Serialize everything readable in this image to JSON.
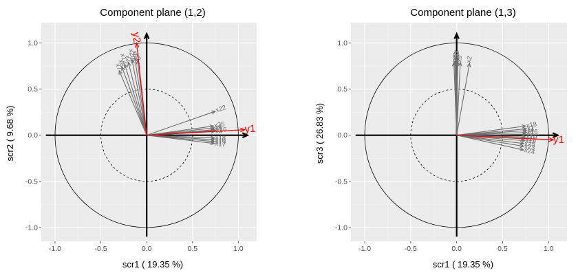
{
  "chart_data": [
    {
      "type": "scatter",
      "subtype": "pca-correlation-circle",
      "title": "Component plane (1,2)",
      "xlabel": "scr1 ( 19.35 %)",
      "ylabel": "scr2 ( 9.68 %)",
      "xlim": [
        -1.15,
        1.2
      ],
      "ylim": [
        -1.15,
        1.22
      ],
      "xticks": [
        "-1.0",
        "-0.5",
        "0.0",
        "0.5",
        "1.0"
      ],
      "yticks": [
        "-1.0",
        "-0.5",
        "0.0",
        "0.5",
        "1.0"
      ],
      "xtick_values": [
        -1,
        -0.5,
        0,
        0.5,
        1
      ],
      "ytick_values": [
        -1,
        -0.5,
        0,
        0.5,
        1
      ],
      "grid": true,
      "background": "#ebebeb",
      "circles": [
        1.0,
        0.5
      ],
      "axis_arrows": {
        "x": [
          -1.1,
          1.1
        ],
        "y": [
          -1.1,
          1.1
        ]
      },
      "predictor_color": "#6e6e6e",
      "response_color": "#ff0000",
      "predictors": [
        {
          "name": "x7",
          "x": -0.3,
          "y": 0.7
        },
        {
          "name": "x8",
          "x": -0.27,
          "y": 0.74
        },
        {
          "name": "x12",
          "x": -0.24,
          "y": 0.77
        },
        {
          "name": "x2",
          "x": -0.2,
          "y": 0.79
        },
        {
          "name": "x20",
          "x": -0.16,
          "y": 0.82
        },
        {
          "name": "x6",
          "x": -0.13,
          "y": 0.84
        },
        {
          "name": "x9",
          "x": -0.1,
          "y": 0.81
        },
        {
          "name": "x22",
          "x": 0.75,
          "y": 0.26
        },
        {
          "name": "x25",
          "x": 0.73,
          "y": 0.1
        },
        {
          "name": "x4",
          "x": 0.74,
          "y": 0.08
        },
        {
          "name": "x1",
          "x": 0.74,
          "y": 0.06
        },
        {
          "name": "x16",
          "x": 0.75,
          "y": 0.05
        },
        {
          "name": "x3",
          "x": 0.74,
          "y": 0.04
        },
        {
          "name": "x18",
          "x": 0.74,
          "y": -0.03
        },
        {
          "name": "x10",
          "x": 0.74,
          "y": -0.05
        },
        {
          "name": "x19",
          "x": 0.74,
          "y": -0.07
        },
        {
          "name": "x17",
          "x": 0.74,
          "y": -0.09
        }
      ],
      "responses": [
        {
          "name": "y1",
          "x": 1.07,
          "y": 0.06
        },
        {
          "name": "y2",
          "x": -0.11,
          "y": 1.0
        }
      ]
    },
    {
      "type": "scatter",
      "subtype": "pca-correlation-circle",
      "title": "Component plane (1,3)",
      "xlabel": "scr1 ( 19.35 %)",
      "ylabel": "scr3 ( 26.83 %)",
      "xlim": [
        -1.15,
        1.2
      ],
      "ylim": [
        -1.15,
        1.22
      ],
      "xticks": [
        "-1.0",
        "-0.5",
        "0.0",
        "0.5",
        "1.0"
      ],
      "yticks": [
        "-1.0",
        "-0.5",
        "0.0",
        "0.5",
        "1.0"
      ],
      "xtick_values": [
        -1,
        -0.5,
        0,
        0.5,
        1
      ],
      "ytick_values": [
        -1,
        -0.5,
        0,
        0.5,
        1
      ],
      "grid": true,
      "background": "#ebebeb",
      "circles": [
        1.0,
        0.5
      ],
      "axis_arrows": {
        "x": [
          -1.1,
          1.1
        ],
        "y": [
          -1.1,
          1.1
        ]
      },
      "predictor_color": "#6e6e6e",
      "response_color": "#ff0000",
      "predictors": [
        {
          "name": "x6",
          "x": -0.03,
          "y": 0.79
        },
        {
          "name": "x8",
          "x": -0.02,
          "y": 0.8
        },
        {
          "name": "x20",
          "x": -0.01,
          "y": 0.81
        },
        {
          "name": "x7",
          "x": 0.0,
          "y": 0.82
        },
        {
          "name": "x12",
          "x": 0.01,
          "y": 0.8
        },
        {
          "name": "x9",
          "x": 0.04,
          "y": 0.79
        },
        {
          "name": "x2",
          "x": 0.14,
          "y": 0.78
        },
        {
          "name": "x18",
          "x": 0.75,
          "y": 0.1
        },
        {
          "name": "x1",
          "x": 0.76,
          "y": 0.07
        },
        {
          "name": "x4",
          "x": 0.76,
          "y": 0.05
        },
        {
          "name": "x16",
          "x": 0.76,
          "y": 0.03
        },
        {
          "name": "x3",
          "x": 0.75,
          "y": 0.01
        },
        {
          "name": "x10",
          "x": 0.75,
          "y": -0.02
        },
        {
          "name": "x17",
          "x": 0.74,
          "y": -0.04
        },
        {
          "name": "x19",
          "x": 0.74,
          "y": -0.06
        },
        {
          "name": "x25",
          "x": 0.73,
          "y": -0.09
        },
        {
          "name": "x23",
          "x": 0.73,
          "y": -0.12
        },
        {
          "name": "x24",
          "x": 0.73,
          "y": -0.16
        }
      ],
      "responses": [
        {
          "name": "y1",
          "x": 1.05,
          "y": -0.05
        }
      ]
    }
  ]
}
